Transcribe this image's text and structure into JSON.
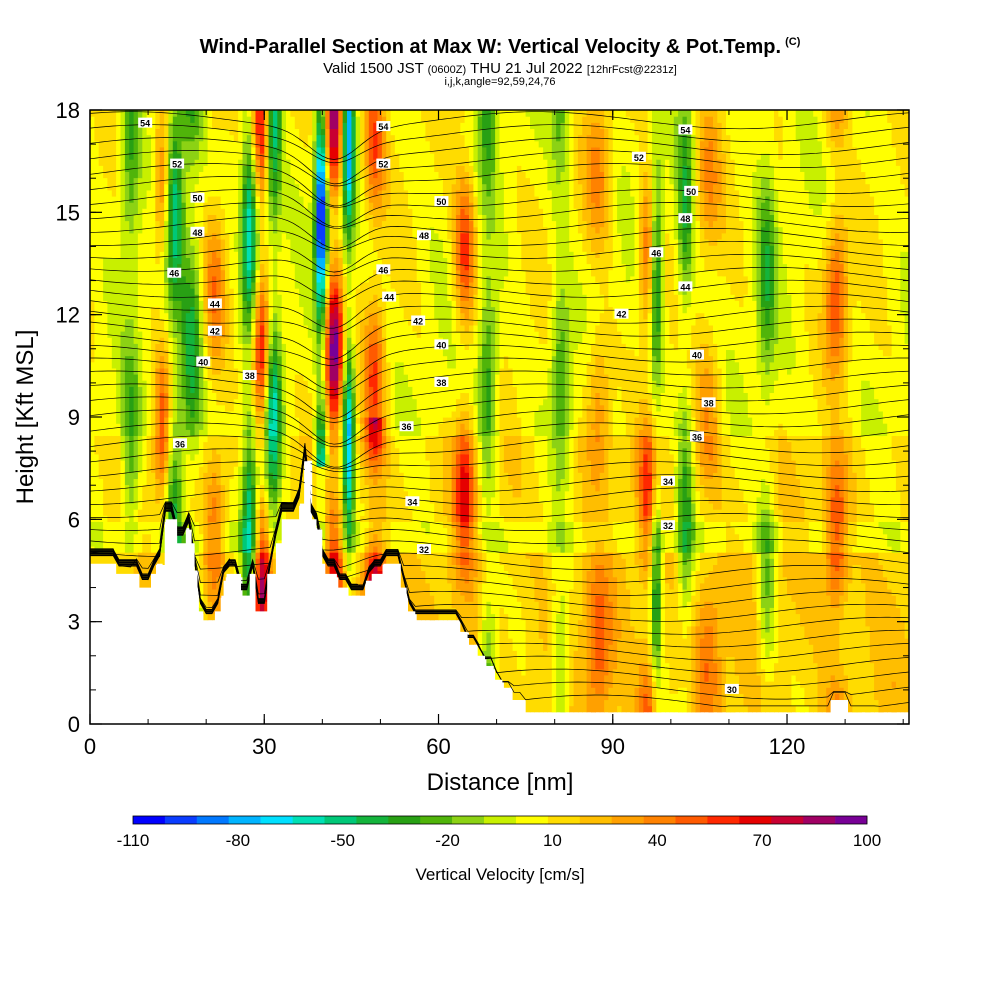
{
  "header": {
    "title": "Wind-Parallel Section at Max W: Vertical Velocity & Pot.Temp.",
    "copyright": "(C)",
    "valid_prefix": "Valid 1500 JST",
    "valid_zulu": "(0600Z)",
    "valid_date": "THU 21 Jul 2022",
    "forecast": "[12hrFcst@2231z]",
    "indices": "i,j,k,angle=92,59,24,76"
  },
  "chart_data": {
    "type": "heatmap",
    "xlabel": "Distance [nm]",
    "ylabel": "Height [Kft MSL]",
    "xlim": [
      0,
      141
    ],
    "ylim": [
      0,
      18
    ],
    "x_ticks": [
      "0",
      "30",
      "60",
      "90",
      "120"
    ],
    "x_tick_values": [
      0,
      30,
      60,
      90,
      120
    ],
    "y_ticks": [
      "0",
      "3",
      "6",
      "9",
      "12",
      "15",
      "18"
    ],
    "y_tick_values": [
      0,
      3,
      6,
      9,
      12,
      15,
      18
    ],
    "colorbar": {
      "title": "Vertical Velocity [cm/s]",
      "labels": [
        "-110",
        "-80",
        "-50",
        "-20",
        "10",
        "40",
        "70",
        "100"
      ],
      "label_values": [
        -110,
        -80,
        -50,
        -20,
        10,
        40,
        70,
        100
      ],
      "colors": [
        "#0000ff",
        "#0a3cff",
        "#0078ff",
        "#00b4ff",
        "#00e0ff",
        "#00e0b4",
        "#00c878",
        "#14b43c",
        "#28a014",
        "#50b40a",
        "#8cd214",
        "#c8f000",
        "#ffff00",
        "#ffdc00",
        "#ffbe00",
        "#ffa000",
        "#ff8200",
        "#ff5a00",
        "#ff2800",
        "#e60000",
        "#c80032",
        "#a00064",
        "#780096"
      ]
    },
    "contour_labels": [
      {
        "text": "54",
        "x": 9.5,
        "y": 17.6
      },
      {
        "text": "52",
        "x": 15,
        "y": 16.4
      },
      {
        "text": "50",
        "x": 18.5,
        "y": 15.4
      },
      {
        "text": "48",
        "x": 18.5,
        "y": 14.4
      },
      {
        "text": "46",
        "x": 14.5,
        "y": 13.2
      },
      {
        "text": "44",
        "x": 21.5,
        "y": 12.3
      },
      {
        "text": "42",
        "x": 21.5,
        "y": 11.5
      },
      {
        "text": "40",
        "x": 19.5,
        "y": 10.6
      },
      {
        "text": "38",
        "x": 27.5,
        "y": 10.2
      },
      {
        "text": "36",
        "x": 15.5,
        "y": 8.2
      },
      {
        "text": "54",
        "x": 50.5,
        "y": 17.5
      },
      {
        "text": "52",
        "x": 50.5,
        "y": 16.4
      },
      {
        "text": "50",
        "x": 60.5,
        "y": 15.3
      },
      {
        "text": "48",
        "x": 57.5,
        "y": 14.3
      },
      {
        "text": "46",
        "x": 50.5,
        "y": 13.3
      },
      {
        "text": "44",
        "x": 51.5,
        "y": 12.5
      },
      {
        "text": "42",
        "x": 56.5,
        "y": 11.8
      },
      {
        "text": "40",
        "x": 60.5,
        "y": 11.1
      },
      {
        "text": "38",
        "x": 60.5,
        "y": 10.0
      },
      {
        "text": "36",
        "x": 54.5,
        "y": 8.7
      },
      {
        "text": "34",
        "x": 55.5,
        "y": 6.5
      },
      {
        "text": "32",
        "x": 57.5,
        "y": 5.1
      },
      {
        "text": "54",
        "x": 102.5,
        "y": 17.4
      },
      {
        "text": "52",
        "x": 94.5,
        "y": 16.6
      },
      {
        "text": "50",
        "x": 103.5,
        "y": 15.6
      },
      {
        "text": "48",
        "x": 102.5,
        "y": 14.8
      },
      {
        "text": "46",
        "x": 97.5,
        "y": 13.8
      },
      {
        "text": "44",
        "x": 102.5,
        "y": 12.8
      },
      {
        "text": "42",
        "x": 91.5,
        "y": 12.0
      },
      {
        "text": "40",
        "x": 104.5,
        "y": 10.8
      },
      {
        "text": "38",
        "x": 106.5,
        "y": 9.4
      },
      {
        "text": "36",
        "x": 104.5,
        "y": 8.4
      },
      {
        "text": "34",
        "x": 99.5,
        "y": 7.1
      },
      {
        "text": "32",
        "x": 99.5,
        "y": 5.8
      },
      {
        "text": "30",
        "x": 110.5,
        "y": 1.0
      }
    ],
    "terrain_polyline": [
      [
        0,
        4.7
      ],
      [
        4.5,
        4.7
      ],
      [
        4.5,
        4.4
      ],
      [
        8.5,
        4.4
      ],
      [
        8.5,
        4.0
      ],
      [
        10.5,
        4.0
      ],
      [
        10.5,
        4.4
      ],
      [
        11.5,
        4.4
      ],
      [
        11.5,
        4.7
      ],
      [
        12.5,
        4.7
      ],
      [
        12.5,
        4.4
      ],
      [
        13,
        4.4
      ],
      [
        13,
        6.0
      ],
      [
        15,
        6.0
      ],
      [
        15,
        5.3
      ],
      [
        16.5,
        5.3
      ],
      [
        16.5,
        5.7
      ],
      [
        17.5,
        5.7
      ],
      [
        17.5,
        5.3
      ],
      [
        18,
        5.3
      ],
      [
        18,
        4.5
      ],
      [
        18.5,
        4.5
      ],
      [
        18.5,
        3.3
      ],
      [
        19.5,
        3.3
      ],
      [
        19.5,
        3.0
      ],
      [
        21.5,
        3.0
      ],
      [
        21.5,
        3.3
      ],
      [
        22.5,
        3.3
      ],
      [
        22.5,
        3.7
      ],
      [
        23,
        3.7
      ],
      [
        23,
        4.2
      ],
      [
        23.5,
        4.2
      ],
      [
        23.5,
        4.4
      ],
      [
        26,
        4.4
      ],
      [
        26,
        3.7
      ],
      [
        27.5,
        3.7
      ],
      [
        27.5,
        4.4
      ],
      [
        28.5,
        4.4
      ],
      [
        28.5,
        3.3
      ],
      [
        30.5,
        3.3
      ],
      [
        30.5,
        4.4
      ],
      [
        32,
        4.4
      ],
      [
        32,
        5.3
      ],
      [
        33,
        5.3
      ],
      [
        33,
        6.0
      ],
      [
        36,
        6.0
      ],
      [
        36,
        6.4
      ],
      [
        37,
        6.4
      ],
      [
        37,
        7.7
      ],
      [
        38,
        7.7
      ],
      [
        38,
        6.0
      ],
      [
        39,
        6.0
      ],
      [
        39,
        5.7
      ],
      [
        40,
        5.7
      ],
      [
        40,
        4.7
      ],
      [
        40.5,
        4.7
      ],
      [
        40.5,
        4.4
      ],
      [
        42.5,
        4.4
      ],
      [
        42.5,
        4.0
      ],
      [
        44.5,
        4.0
      ],
      [
        44.5,
        3.7
      ],
      [
        45,
        3.7
      ],
      [
        45,
        3.7
      ],
      [
        46,
        3.7
      ],
      [
        46,
        3.7
      ],
      [
        47.5,
        3.7
      ],
      [
        47.5,
        4.2
      ],
      [
        48.5,
        4.2
      ],
      [
        48.5,
        4.4
      ],
      [
        50.5,
        4.4
      ],
      [
        50.5,
        4.7
      ],
      [
        53.5,
        4.7
      ],
      [
        53.5,
        4.0
      ],
      [
        54.5,
        4.0
      ],
      [
        54.5,
        3.3
      ],
      [
        56,
        3.3
      ],
      [
        56,
        3.0
      ],
      [
        63.5,
        3.0
      ],
      [
        63.5,
        2.7
      ],
      [
        65,
        2.7
      ],
      [
        65,
        2.3
      ],
      [
        66.5,
        2.3
      ],
      [
        66.5,
        2.0
      ],
      [
        68,
        2.0
      ],
      [
        68,
        1.7
      ],
      [
        69.5,
        1.7
      ],
      [
        69.5,
        1.3
      ],
      [
        71,
        1.3
      ],
      [
        71,
        1.0
      ],
      [
        72.5,
        1.0
      ],
      [
        72.5,
        0.7
      ],
      [
        75,
        0.7
      ],
      [
        75,
        0.3
      ],
      [
        127.5,
        0.3
      ],
      [
        127.5,
        0.7
      ],
      [
        130.5,
        0.7
      ],
      [
        130.5,
        0.3
      ],
      [
        141,
        0.3
      ]
    ],
    "updraft_columns": [
      {
        "x": 42.0,
        "w": 1.6,
        "strength": 1.0
      },
      {
        "x": 49.0,
        "w": 1.8,
        "strength": 1.0
      },
      {
        "x": 29.5,
        "w": 1.6,
        "strength": 0.75
      },
      {
        "x": 12.5,
        "w": 1.4,
        "strength": 0.45
      },
      {
        "x": 21.5,
        "w": 1.8,
        "strength": 0.35
      },
      {
        "x": 64.5,
        "w": 1.8,
        "strength": 0.55
      },
      {
        "x": 96.0,
        "w": 1.6,
        "strength": 0.45
      },
      {
        "x": 128.5,
        "w": 2.0,
        "strength": 0.5
      },
      {
        "x": 87.5,
        "w": 2.2,
        "strength": 0.35
      },
      {
        "x": 106.5,
        "w": 2.2,
        "strength": 0.3
      }
    ],
    "downdraft_columns": [
      {
        "x": 39.8,
        "w": 1.0,
        "strength": 1.0
      },
      {
        "x": 44.5,
        "w": 1.0,
        "strength": 0.7
      },
      {
        "x": 27.5,
        "w": 1.4,
        "strength": 0.6
      },
      {
        "x": 31.5,
        "w": 1.4,
        "strength": 0.55
      },
      {
        "x": 14.5,
        "w": 1.6,
        "strength": 0.45
      },
      {
        "x": 17.5,
        "w": 1.8,
        "strength": 0.4
      },
      {
        "x": 97.5,
        "w": 1.0,
        "strength": 0.45
      },
      {
        "x": 102.5,
        "w": 1.4,
        "strength": 0.35
      },
      {
        "x": 68.5,
        "w": 1.6,
        "strength": 0.35
      },
      {
        "x": 81.0,
        "w": 1.6,
        "strength": 0.3
      },
      {
        "x": 116.5,
        "w": 1.6,
        "strength": 0.3
      },
      {
        "x": 7.0,
        "w": 1.6,
        "strength": 0.3
      }
    ]
  }
}
